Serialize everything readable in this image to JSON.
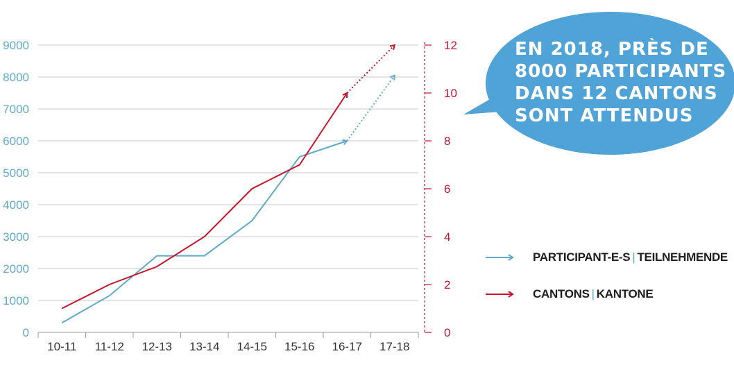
{
  "chart_data": {
    "type": "line",
    "categories": [
      "10-11",
      "11-12",
      "12-13",
      "13-14",
      "14-15",
      "15-16",
      "16-17",
      "17-18"
    ],
    "y_left": {
      "ticks": [
        0,
        1000,
        2000,
        3000,
        4000,
        5000,
        6000,
        7000,
        8000,
        9000
      ],
      "range": [
        0,
        9000
      ]
    },
    "y_right": {
      "ticks": [
        0,
        2,
        4,
        6,
        8,
        10,
        12
      ],
      "range": [
        0,
        12
      ]
    },
    "series": [
      {
        "name": "PARTICIPANT-E-S | TEILNEHMENDE",
        "axis": "left",
        "color": "#5fa9c9",
        "values": [
          300,
          1150,
          2400,
          2400,
          3500,
          5500,
          6000,
          8050
        ],
        "projected_from_index": 6
      },
      {
        "name": "CANTONS | KANTONE",
        "axis": "right",
        "color": "#c4152a",
        "values": [
          1,
          2,
          2.75,
          4,
          6,
          7,
          10,
          12
        ],
        "projected_from_index": 6
      }
    ],
    "grid": true
  },
  "legend": {
    "participants": {
      "label_a": "PARTICIPANT-E-S",
      "sep": "|",
      "label_b": "TEILNEHMENDE",
      "color": "#5fa9c9"
    },
    "cantons": {
      "label_a": "CANTONS",
      "sep": "|",
      "label_b": "KANTONE",
      "color": "#c4152a"
    }
  },
  "callout": {
    "lines": [
      "EN 2018, PRÈS DE",
      "8000 PARTICIPANTS",
      "DANS 12 CANTONS",
      "SONT ATTENDUS"
    ],
    "color": "#4fa3d6"
  }
}
